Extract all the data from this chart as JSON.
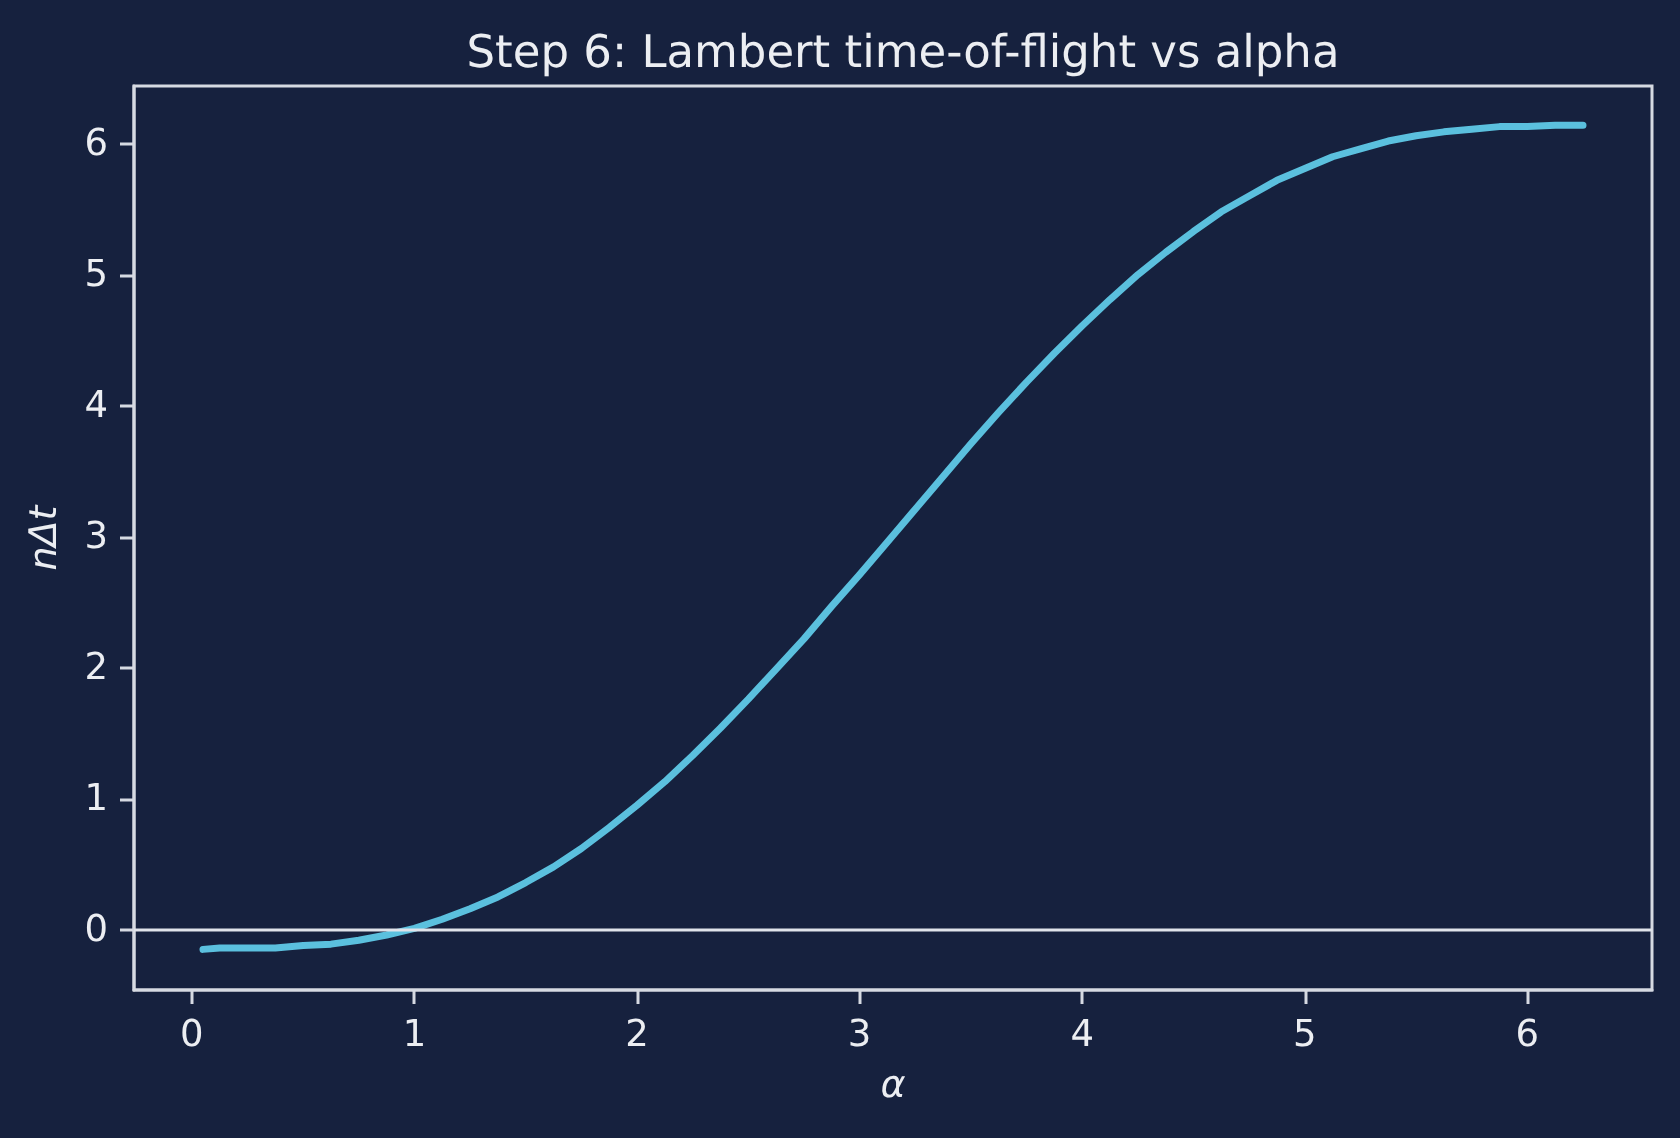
{
  "chart_data": {
    "type": "line",
    "title": "Step 6: Lambert time-of-flight vs alpha",
    "xlabel": "α",
    "ylabel": "nΔt",
    "x": [
      0.05,
      0.125,
      0.25,
      0.375,
      0.5,
      0.625,
      0.75,
      0.875,
      1.0,
      1.125,
      1.25,
      1.375,
      1.5,
      1.625,
      1.75,
      1.875,
      2.0,
      2.125,
      2.25,
      2.375,
      2.5,
      2.625,
      2.75,
      2.875,
      3.0,
      3.125,
      3.25,
      3.375,
      3.5,
      3.625,
      3.75,
      3.875,
      4.0,
      4.125,
      4.25,
      4.375,
      4.5,
      4.625,
      4.75,
      4.875,
      5.0,
      5.125,
      5.25,
      5.375,
      5.5,
      5.625,
      5.75,
      5.875,
      6.0,
      6.125,
      6.25
    ],
    "series": [
      {
        "color": "#5bc0de",
        "values": [
          -0.15,
          -0.14,
          -0.14,
          -0.14,
          -0.12,
          -0.11,
          -0.08,
          -0.04,
          0.01,
          0.08,
          0.16,
          0.25,
          0.36,
          0.48,
          0.62,
          0.78,
          0.95,
          1.13,
          1.33,
          1.54,
          1.76,
          1.99,
          2.22,
          2.47,
          2.71,
          2.96,
          3.21,
          3.46,
          3.71,
          3.95,
          4.18,
          4.4,
          4.61,
          4.81,
          5.0,
          5.17,
          5.33,
          5.48,
          5.6,
          5.72,
          5.81,
          5.9,
          5.96,
          6.02,
          6.06,
          6.09,
          6.11,
          6.13,
          6.13,
          6.14,
          6.14
        ]
      }
    ],
    "xlim": [
      -0.26,
      6.56
    ],
    "ylim": [
      -0.46,
      6.44
    ],
    "xticks": [
      0,
      1,
      2,
      3,
      4,
      5,
      6
    ],
    "yticks": [
      0,
      1,
      2,
      3,
      4,
      5,
      6
    ],
    "ref_lines": [
      {
        "axis": "y",
        "value": 0,
        "color": "#e0e3ea"
      }
    ],
    "line_style": "solid"
  }
}
